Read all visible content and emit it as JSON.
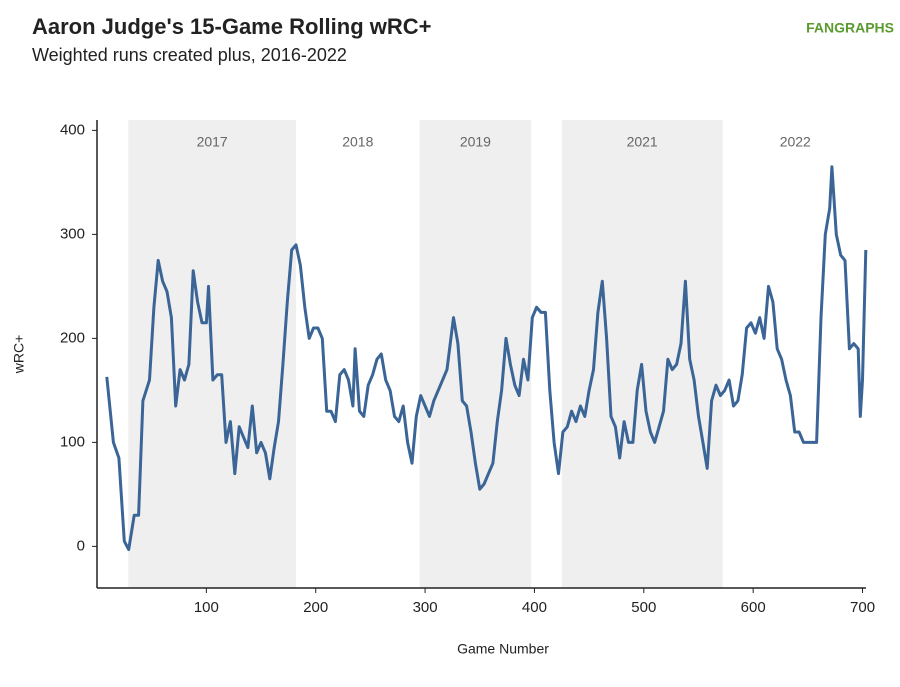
{
  "chart_data": {
    "type": "line",
    "title": "Aaron Judge's 15-Game Rolling wRC+",
    "subtitle": "Weighted runs created plus, 2016-2022",
    "logo": "FANGRAPHS",
    "x_label": "Game Number",
    "y_label": "wRC+",
    "xlim": [
      0,
      705
    ],
    "ylim": [
      -40,
      410
    ],
    "xticks": [
      100,
      200,
      300,
      400,
      500,
      600,
      700
    ],
    "yticks": [
      0,
      100,
      200,
      300,
      400
    ],
    "grid": false,
    "seasons": [
      {
        "label": "2017",
        "start": 28.6,
        "end": 182,
        "shaded": true
      },
      {
        "label": "2018",
        "start": 182,
        "end": 295,
        "shaded": false
      },
      {
        "label": "2019",
        "start": 295,
        "end": 397,
        "shaded": true
      },
      {
        "label": "2021",
        "start": 425,
        "end": 572,
        "shaded": true
      },
      {
        "label": "2022",
        "start": 572,
        "end": 705,
        "shaded": false
      }
    ],
    "series": [
      {
        "name": "wRC+",
        "color": "#3a6596",
        "x": [
          9,
          15,
          20,
          25,
          29,
          34,
          38,
          42,
          48,
          52,
          56,
          60,
          64,
          68,
          72,
          76,
          80,
          84,
          88,
          92,
          96,
          100,
          102,
          106,
          110,
          114,
          118,
          122,
          126,
          130,
          134,
          138,
          142,
          146,
          150,
          154,
          158,
          162,
          166,
          170,
          174,
          178,
          182,
          186,
          190,
          194,
          198,
          202,
          206,
          210,
          214,
          218,
          222,
          226,
          230,
          234,
          236,
          240,
          244,
          248,
          252,
          256,
          260,
          264,
          268,
          272,
          276,
          280,
          284,
          288,
          292,
          296,
          300,
          304,
          308,
          312,
          316,
          320,
          326,
          330,
          334,
          338,
          342,
          346,
          350,
          354,
          358,
          362,
          366,
          370,
          374,
          378,
          382,
          386,
          390,
          394,
          398,
          402,
          406,
          410,
          414,
          418,
          422,
          426,
          430,
          434,
          438,
          442,
          446,
          450,
          454,
          458,
          462,
          466,
          470,
          474,
          478,
          482,
          486,
          490,
          494,
          498,
          502,
          506,
          510,
          514,
          518,
          522,
          526,
          530,
          534,
          538,
          542,
          546,
          550,
          554,
          558,
          562,
          566,
          570,
          574,
          578,
          582,
          586,
          590,
          594,
          598,
          602,
          606,
          610,
          614,
          618,
          622,
          626,
          630,
          634,
          638,
          642,
          646,
          650,
          654,
          658,
          662,
          666,
          670,
          672,
          676,
          680,
          684,
          688,
          692,
          696,
          698,
          700,
          703
        ],
        "values": [
          163,
          100,
          85,
          5,
          -3,
          30,
          30,
          140,
          160,
          230,
          275,
          255,
          245,
          220,
          135,
          170,
          160,
          175,
          265,
          235,
          215,
          215,
          250,
          160,
          165,
          165,
          100,
          120,
          70,
          115,
          105,
          95,
          135,
          90,
          100,
          90,
          65,
          95,
          120,
          175,
          235,
          285,
          290,
          270,
          230,
          200,
          210,
          210,
          200,
          130,
          130,
          120,
          165,
          170,
          160,
          135,
          190,
          130,
          125,
          155,
          165,
          180,
          185,
          160,
          150,
          125,
          120,
          135,
          100,
          80,
          125,
          145,
          135,
          125,
          140,
          150,
          160,
          170,
          220,
          195,
          140,
          135,
          110,
          80,
          55,
          60,
          70,
          80,
          120,
          150,
          200,
          175,
          155,
          145,
          180,
          160,
          220,
          230,
          225,
          225,
          150,
          100,
          70,
          110,
          115,
          130,
          120,
          135,
          125,
          150,
          170,
          225,
          255,
          200,
          125,
          115,
          85,
          120,
          100,
          100,
          150,
          175,
          130,
          110,
          100,
          115,
          130,
          180,
          170,
          175,
          195,
          255,
          180,
          160,
          125,
          100,
          75,
          140,
          155,
          145,
          150,
          160,
          135,
          140,
          165,
          210,
          215,
          205,
          220,
          200,
          250,
          235,
          190,
          180,
          160,
          145,
          110,
          110,
          100,
          100,
          100,
          100,
          220,
          300,
          325,
          365,
          300,
          280,
          275,
          190,
          195,
          190,
          125,
          160,
          285
        ]
      }
    ]
  }
}
